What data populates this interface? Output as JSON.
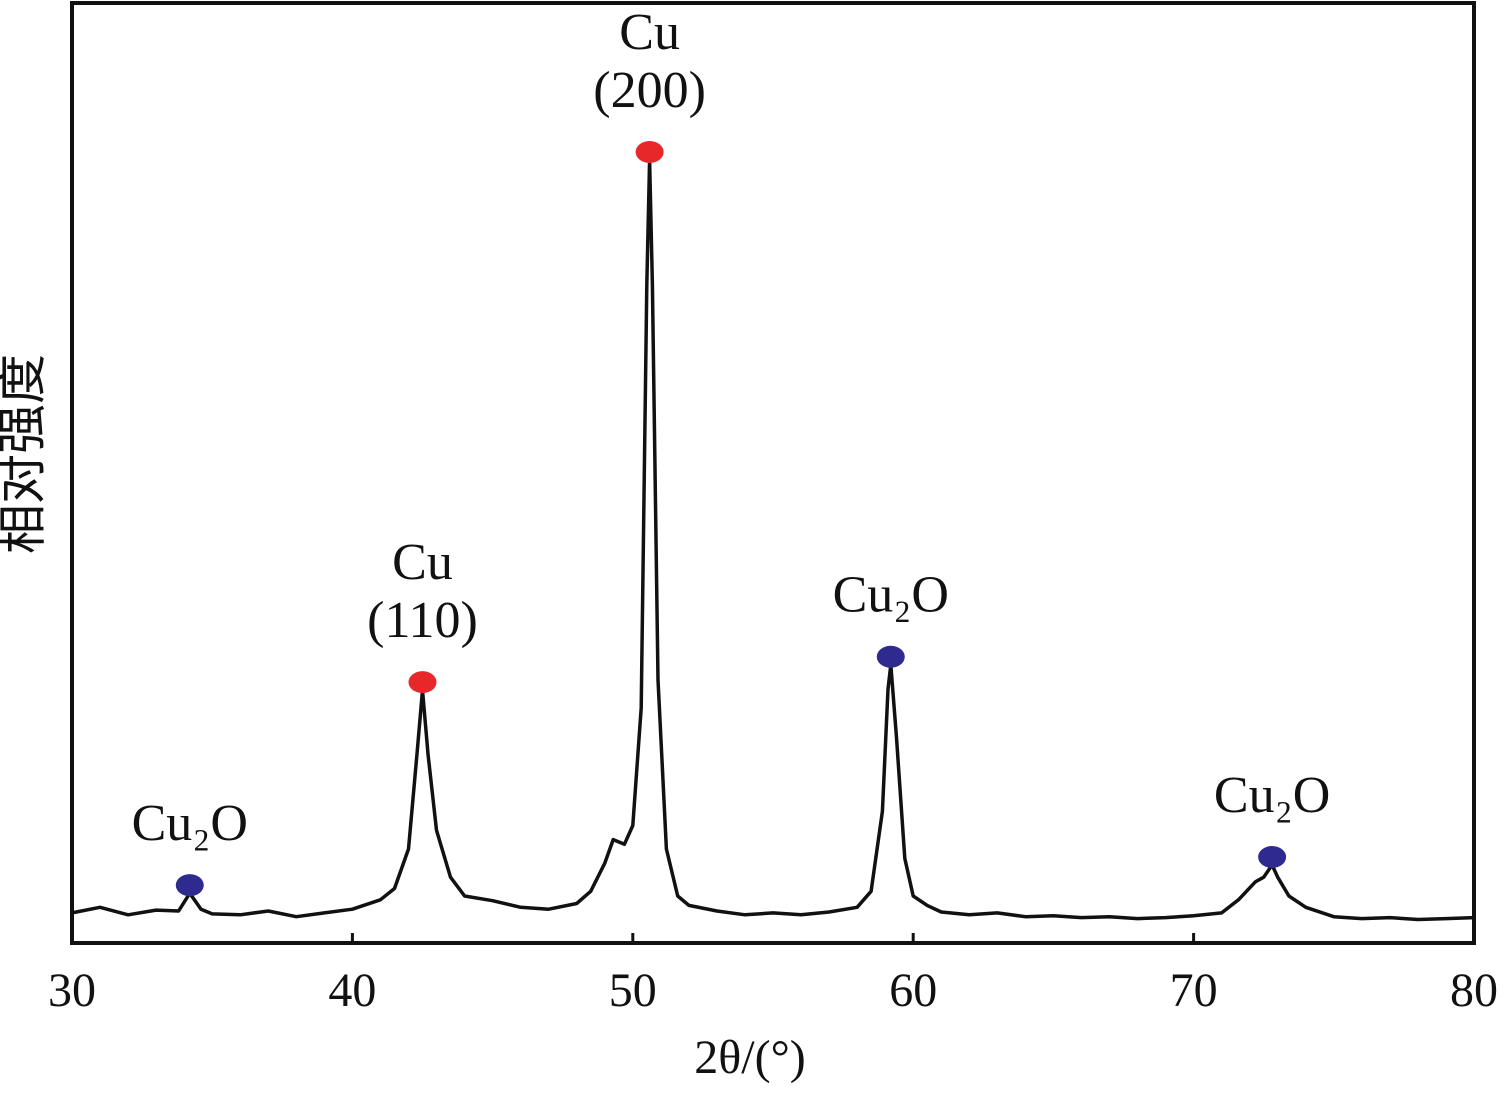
{
  "chart_data": {
    "type": "line",
    "ylabel": "相对强度",
    "xlabel": "2θ/(°)",
    "x": [
      30,
      31,
      32,
      33,
      33.8,
      34.2,
      34.6,
      35,
      36,
      37,
      38,
      39,
      40,
      41,
      41.5,
      42,
      42.3,
      42.5,
      42.7,
      43,
      43.5,
      44,
      45,
      46,
      47,
      48,
      48.5,
      49,
      49.3,
      49.7,
      50,
      50.3,
      50.5,
      50.6,
      50.7,
      50.9,
      51.2,
      51.6,
      52,
      53,
      54,
      55,
      56,
      57,
      58,
      58.5,
      58.9,
      59.1,
      59.2,
      59.4,
      59.7,
      60,
      60.5,
      61,
      62,
      63,
      64,
      65,
      66,
      67,
      68,
      69,
      70,
      71,
      71.6,
      72.2,
      72.5,
      72.8,
      73,
      73.4,
      74,
      75,
      76,
      77,
      78,
      79,
      80
    ],
    "values": [
      3.2,
      3.8,
      3.0,
      3.5,
      3.4,
      5.3,
      3.6,
      3.1,
      3.0,
      3.4,
      2.8,
      3.2,
      3.6,
      4.6,
      5.8,
      10,
      20,
      26.9,
      20,
      12,
      7,
      5,
      4.5,
      3.8,
      3.6,
      4.2,
      5.5,
      8.5,
      11,
      10.5,
      12.5,
      25,
      70,
      83.3,
      70,
      28,
      10,
      5,
      4,
      3.4,
      3.0,
      3.2,
      3.0,
      3.3,
      3.8,
      5.5,
      14,
      27,
      29.6,
      22,
      9,
      5,
      4,
      3.3,
      3.0,
      3.2,
      2.8,
      2.9,
      2.7,
      2.8,
      2.6,
      2.7,
      2.9,
      3.2,
      4.6,
      6.5,
      7,
      8.3,
      7,
      5,
      3.8,
      2.8,
      2.6,
      2.7,
      2.5,
      2.6,
      2.7
    ],
    "color": "#111111",
    "xlim": [
      30,
      80
    ],
    "xticks": [
      30,
      40,
      50,
      60,
      70,
      80
    ],
    "ylim": [
      0,
      100
    ],
    "annotations": [
      {
        "text": [
          "Cu₂O"
        ],
        "x": 34.2,
        "y": 5.3,
        "color": "#2e2a8f"
      },
      {
        "text": [
          "Cu",
          "(110)"
        ],
        "x": 42.5,
        "y": 26.9,
        "color": "#e8272a"
      },
      {
        "text": [
          "Cu",
          "(200)"
        ],
        "x": 50.6,
        "y": 83.3,
        "color": "#e8272a"
      },
      {
        "text": [
          "Cu₂O"
        ],
        "x": 59.2,
        "y": 29.6,
        "color": "#2e2a8f"
      },
      {
        "text": [
          "Cu₂O"
        ],
        "x": 72.8,
        "y": 8.3,
        "color": "#2e2a8f"
      }
    ]
  }
}
